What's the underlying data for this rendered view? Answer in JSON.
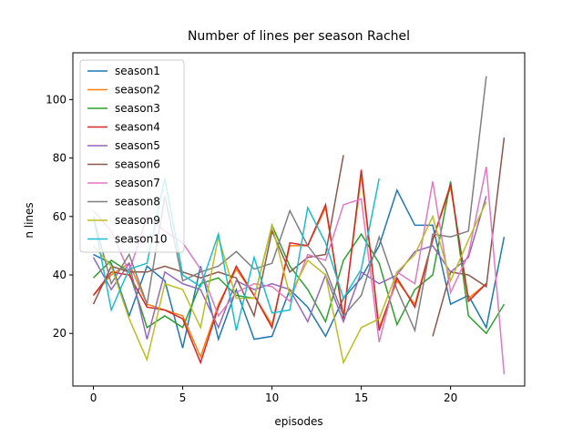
{
  "chart_data": {
    "type": "line",
    "title": "Number of lines per season Rachel",
    "xlabel": "episodes",
    "ylabel": "n lines",
    "x": [
      0,
      1,
      2,
      3,
      4,
      5,
      6,
      7,
      8,
      9,
      10,
      11,
      12,
      13,
      14,
      15,
      16,
      17,
      18,
      19,
      20,
      21,
      22,
      23
    ],
    "series": [
      {
        "name": "season1",
        "color": "#1f77b4",
        "values": [
          47,
          44,
          26,
          43,
          38,
          15,
          43,
          18,
          35,
          18,
          19,
          35,
          29,
          19,
          32,
          39,
          50,
          69,
          57,
          57,
          30,
          33,
          22,
          53
        ]
      },
      {
        "name": "season2",
        "color": "#ff7f0e",
        "values": [
          33,
          40,
          44,
          30,
          28,
          26,
          12,
          30,
          42,
          33,
          23,
          50,
          50,
          63,
          26,
          74,
          22,
          38,
          30,
          52,
          70,
          32,
          37,
          null
        ]
      },
      {
        "name": "season3",
        "color": "#2ca02c",
        "values": [
          39,
          45,
          41,
          22,
          26,
          22,
          37,
          39,
          33,
          32,
          57,
          43,
          35,
          24,
          45,
          54,
          44,
          23,
          35,
          40,
          72,
          26,
          20,
          30
        ]
      },
      {
        "name": "season4",
        "color": "#d62728",
        "values": [
          33,
          41,
          40,
          29,
          28,
          25,
          10,
          29,
          43,
          33,
          22,
          51,
          50,
          64,
          25,
          76,
          21,
          39,
          29,
          52,
          71,
          31,
          37,
          null
        ]
      },
      {
        "name": "season5",
        "color": "#9467bd",
        "values": [
          46,
          35,
          44,
          18,
          41,
          37,
          35,
          22,
          38,
          35,
          37,
          35,
          24,
          40,
          24,
          41,
          37,
          40,
          48,
          50,
          41,
          46,
          67,
          null
        ]
      },
      {
        "name": "season6",
        "color": "#8c564b",
        "values": [
          30,
          43,
          41,
          41,
          43,
          41,
          39,
          41,
          39,
          26,
          55,
          41,
          46,
          47,
          81,
          null,
          null,
          null,
          null,
          19,
          41,
          40,
          36,
          87
        ]
      },
      {
        "name": "season7",
        "color": "#e377c2",
        "values": [
          62,
          55,
          41,
          60,
          55,
          51,
          42,
          26,
          34,
          37,
          36,
          31,
          47,
          45,
          64,
          66,
          17,
          41,
          37,
          72,
          34,
          47,
          77,
          6
        ]
      },
      {
        "name": "season8",
        "color": "#7f7f7f",
        "values": [
          60,
          37,
          47,
          30,
          67,
          38,
          41,
          43,
          48,
          42,
          44,
          62,
          50,
          42,
          26,
          33,
          53,
          35,
          21,
          54,
          53,
          55,
          108,
          null
        ]
      },
      {
        "name": "season9",
        "color": "#bcbd22",
        "values": [
          50,
          43,
          25,
          11,
          37,
          35,
          22,
          53,
          32,
          32,
          57,
          33,
          45,
          40,
          10,
          22,
          25,
          41,
          47,
          60,
          38,
          52,
          65,
          null
        ]
      },
      {
        "name": "season10",
        "color": "#17becf",
        "values": [
          60,
          28,
          42,
          44,
          73,
          40,
          36,
          54,
          21,
          46,
          27,
          28,
          63,
          51,
          32,
          42,
          73,
          null,
          null,
          null,
          null,
          null,
          null,
          null
        ]
      }
    ],
    "xlim": [
      -1.15,
      24.15
    ],
    "ylim": [
      2,
      116
    ],
    "xticks": [
      0,
      5,
      10,
      15,
      20
    ],
    "yticks": [
      20,
      40,
      60,
      80,
      100
    ],
    "legend": "upper left"
  }
}
